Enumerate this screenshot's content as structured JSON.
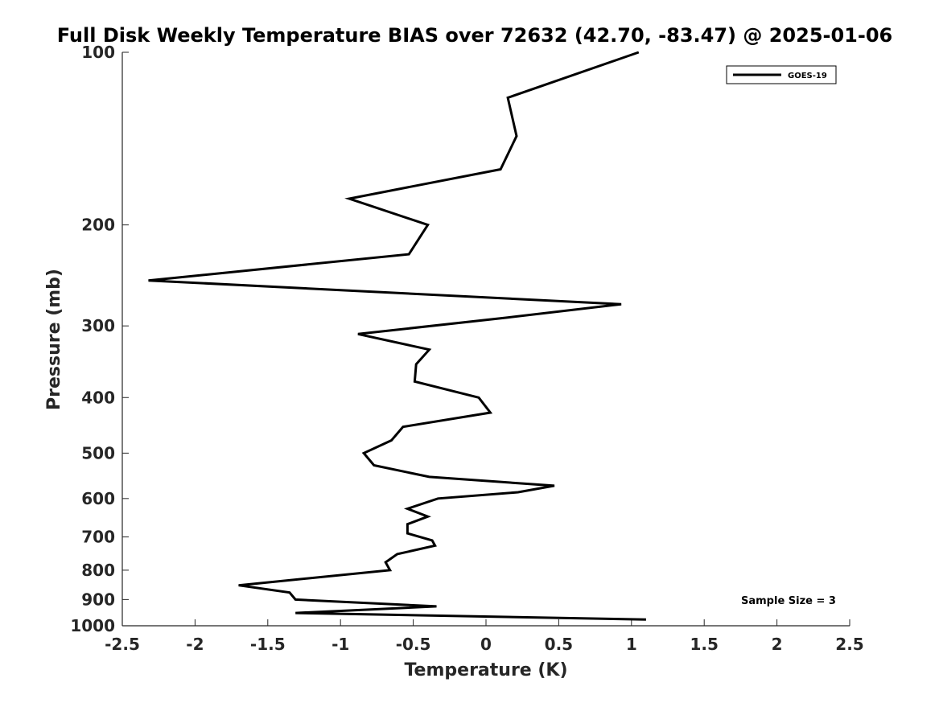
{
  "chart_data": {
    "type": "line",
    "title": "Full Disk Weekly Temperature BIAS over 72632 (42.70, -83.47) @ 2025-01-06",
    "xlabel": "Temperature (K)",
    "ylabel": "Pressure (mb)",
    "xlim": [
      -2.5,
      2.5
    ],
    "ylim": [
      100,
      1000
    ],
    "y_scale": "log",
    "y_reversed": true,
    "grid": false,
    "x_ticks": [
      -2.5,
      -2,
      -1.5,
      -1,
      -0.5,
      0,
      0.5,
      1,
      1.5,
      2,
      2.5
    ],
    "x_tick_labels": [
      "-2.5",
      "-2",
      "-1.5",
      "-1",
      "-0.5",
      "0",
      "0.5",
      "1",
      "1.5",
      "2",
      "2.5"
    ],
    "y_ticks": [
      100,
      200,
      300,
      400,
      500,
      600,
      700,
      800,
      900,
      1000
    ],
    "y_tick_labels": [
      "100",
      "200",
      "300",
      "400",
      "500",
      "600",
      "700",
      "800",
      "900",
      "1000"
    ],
    "legend": {
      "position": "top-right",
      "entries": [
        "GOES-19"
      ]
    },
    "annotation": "Sample Size = 3",
    "series": [
      {
        "name": "GOES-19",
        "color": "#000000",
        "x": [
          1.05,
          0.15,
          0.21,
          0.1,
          -0.94,
          -0.4,
          -0.53,
          -2.32,
          0.93,
          0.15,
          -0.88,
          -0.39,
          -0.48,
          -0.49,
          -0.05,
          0.03,
          -0.57,
          -0.65,
          -0.84,
          -0.77,
          -0.39,
          0.47,
          0.22,
          -0.33,
          -0.54,
          -0.4,
          -0.54,
          -0.54,
          -0.37,
          -0.35,
          -0.61,
          -0.69,
          -0.66,
          -1.7,
          -1.35,
          -1.31,
          -0.34,
          -1.31,
          1.1
        ],
        "y": [
          100,
          120,
          140,
          160,
          180,
          200,
          225,
          250,
          275,
          290,
          310,
          330,
          350,
          375,
          400,
          425,
          450,
          475,
          500,
          525,
          550,
          570,
          585,
          600,
          625,
          645,
          665,
          690,
          710,
          725,
          750,
          775,
          800,
          850,
          875,
          900,
          925,
          950,
          975
        ]
      }
    ]
  }
}
